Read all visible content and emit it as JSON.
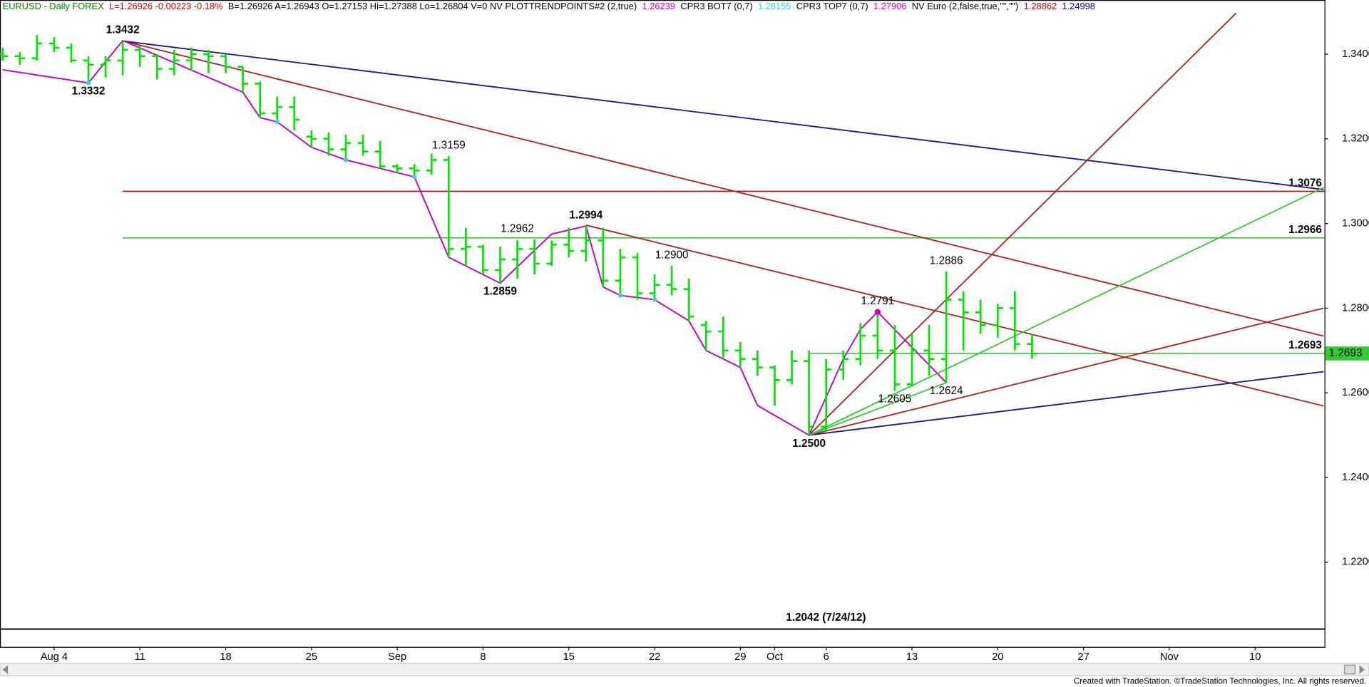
{
  "chart_data": {
    "type": "ohlc",
    "header": [
      {
        "text": "EURUSD - Daily  FOREX",
        "color": "#008000"
      },
      {
        "text": "L=1.26926  -0.00223  -0.18%",
        "color": "#cc0000"
      },
      {
        "text": "B=1.26926  A=1.26943  O=1.27153  Hi=1.27388  Lo=1.26804  V=0  NV  PLOTTRENDPOINTS#2 (2,true)",
        "color": "#000000"
      },
      {
        "text": "1.26239",
        "color": "#cc00cc"
      },
      {
        "text": "CPR3 BOT7 (0,7)",
        "color": "#000000"
      },
      {
        "text": "1.28155",
        "color": "#33ccff"
      },
      {
        "text": "CPR3 TOP7 (0,7)",
        "color": "#000000"
      },
      {
        "text": "1.27906",
        "color": "#cc00cc"
      },
      {
        "text": "NV Euro (2,false,true,\"\",\"\")",
        "color": "#000000"
      },
      {
        "text": "1.28862",
        "color": "#cc0000"
      },
      {
        "text": "1.24998",
        "color": "#000099"
      }
    ],
    "footer": "Created with TradeStation. ©TradeStation Technologies, Inc. All rights reserved.",
    "categories": [
      null,
      null,
      null,
      "Aug 4",
      null,
      null,
      null,
      null,
      "11",
      null,
      null,
      null,
      null,
      "18",
      null,
      null,
      null,
      null,
      "25",
      null,
      null,
      null,
      null,
      "Sep",
      null,
      null,
      null,
      null,
      "8",
      null,
      null,
      null,
      null,
      "15",
      null,
      null,
      null,
      null,
      "22",
      null,
      null,
      null,
      null,
      "29",
      null,
      "Oct",
      null,
      null,
      "6",
      null,
      null,
      null,
      null,
      "13",
      null,
      null,
      null,
      null,
      "20",
      null,
      null,
      null,
      null,
      "27",
      null,
      null,
      null,
      null,
      "Nov",
      null,
      null,
      null,
      null,
      "10",
      null,
      null,
      null
    ],
    "color": "#00e600",
    "open": [
      1.34,
      1.3395,
      1.339,
      1.3425,
      1.3415,
      1.3385,
      1.3375,
      1.3385,
      1.341,
      1.3395,
      1.3365,
      1.3385,
      1.34,
      1.3395,
      1.337,
      1.333,
      1.326,
      1.3275,
      1.3205,
      1.32,
      1.3175,
      1.319,
      1.317,
      1.3135,
      1.313,
      1.3125,
      1.315,
      1.294,
      1.2945,
      1.289,
      1.2915,
      1.294,
      1.2905,
      1.295,
      1.2935,
      1.296,
      1.2865,
      1.292,
      1.2835,
      1.2855,
      1.2845,
      1.276,
      1.2745,
      1.27,
      1.268,
      1.266,
      1.263,
      1.2675,
      1.252,
      1.2655,
      1.268,
      1.2735,
      1.27,
      1.262,
      1.27,
      1.268,
      1.282,
      1.279,
      1.276,
      1.28,
      1.27153,
      null,
      null,
      null,
      null,
      null,
      null,
      null,
      null,
      null,
      null,
      null,
      null,
      null,
      null,
      null,
      null
    ],
    "high": [
      1.3415,
      1.3405,
      1.3445,
      1.344,
      1.3425,
      1.3395,
      1.3395,
      1.3432,
      1.342,
      1.34,
      1.341,
      1.3415,
      1.341,
      1.34,
      1.337,
      1.3335,
      1.33,
      1.33,
      1.322,
      1.3215,
      1.321,
      1.321,
      1.3195,
      1.314,
      1.314,
      1.3165,
      1.3159,
      1.299,
      1.295,
      1.2945,
      1.296,
      1.2962,
      1.296,
      1.299,
      1.2994,
      1.299,
      1.294,
      1.293,
      1.288,
      1.29,
      1.287,
      1.277,
      1.278,
      1.272,
      1.27,
      1.2665,
      1.27,
      1.27,
      1.268,
      1.27,
      1.2765,
      1.2791,
      1.276,
      1.274,
      1.276,
      1.2886,
      1.284,
      1.282,
      1.281,
      1.284,
      1.27388,
      null,
      null,
      null,
      null,
      null,
      null,
      null,
      null,
      null,
      null,
      null,
      null,
      null,
      null,
      null,
      null
    ],
    "low": [
      1.3385,
      1.3375,
      1.3385,
      1.3405,
      1.338,
      1.3332,
      1.3345,
      1.335,
      1.337,
      1.334,
      1.335,
      1.336,
      1.3355,
      1.3355,
      1.331,
      1.325,
      1.324,
      1.322,
      1.318,
      1.316,
      1.315,
      1.316,
      1.313,
      1.312,
      1.311,
      1.3115,
      1.292,
      1.29,
      1.288,
      1.2859,
      1.287,
      1.288,
      1.29,
      1.292,
      1.291,
      1.285,
      1.283,
      1.282,
      1.2815,
      1.283,
      1.277,
      1.27,
      1.268,
      1.266,
      1.264,
      1.257,
      1.262,
      1.25,
      1.251,
      1.263,
      1.2665,
      1.268,
      1.2605,
      1.2615,
      1.264,
      1.2624,
      1.27,
      1.274,
      1.273,
      1.27,
      1.26804,
      null,
      null,
      null,
      null,
      null,
      null,
      null,
      null,
      null,
      null,
      null,
      null,
      null,
      null,
      null,
      null
    ],
    "close": [
      1.3395,
      1.339,
      1.3425,
      1.3415,
      1.3385,
      1.3375,
      1.3385,
      1.341,
      1.3395,
      1.3365,
      1.3385,
      1.34,
      1.3395,
      1.337,
      1.333,
      1.326,
      1.3275,
      1.3245,
      1.32,
      1.3175,
      1.319,
      1.317,
      1.3135,
      1.313,
      1.3125,
      1.315,
      1.294,
      1.2945,
      1.289,
      1.2915,
      1.294,
      1.2905,
      1.295,
      1.2935,
      1.296,
      1.2865,
      1.292,
      1.2835,
      1.2855,
      1.2845,
      1.278,
      1.2745,
      1.27,
      1.268,
      1.266,
      1.263,
      1.2675,
      1.252,
      1.2655,
      1.268,
      1.2735,
      1.27,
      1.262,
      1.27,
      1.268,
      1.282,
      1.279,
      1.276,
      1.28,
      1.2715,
      1.26926,
      null,
      null,
      null,
      null,
      null,
      null,
      null,
      null,
      null,
      null,
      null,
      null,
      null,
      null,
      null,
      null
    ],
    "ylim": [
      1.2,
      1.35
    ],
    "yticks": [
      {
        "value": 1.34,
        "label": "1.3400"
      },
      {
        "value": 1.32,
        "label": "1.3200"
      },
      {
        "value": 1.3,
        "label": "1.3000"
      },
      {
        "value": 1.28,
        "label": "1.2800"
      },
      {
        "value": 1.26,
        "label": "1.2600"
      },
      {
        "value": 1.24,
        "label": "1.2400"
      },
      {
        "value": 1.22,
        "label": "1.2200"
      }
    ],
    "grid": false,
    "levels": [
      {
        "value": 1.3076,
        "label": "1.3076",
        "color": "#cc0000",
        "start": 7
      },
      {
        "value": 1.2966,
        "label": "1.2966",
        "color": "#33cc33",
        "start": 7
      },
      {
        "value": 1.2693,
        "label": "1.2693",
        "color": "#33cc33",
        "start": 47,
        "tag": true
      },
      {
        "value": 1.2042,
        "label": "1.2042 (7/24/12)",
        "color": "#000000"
      }
    ],
    "trend_lines": [
      {
        "from": [
          7,
          1.3431
        ],
        "to": [
          77,
          1.308
        ],
        "color": "#1a1a8c"
      },
      {
        "from": [
          7,
          1.3431
        ],
        "to": [
          77,
          1.2734
        ],
        "color": "#b22222"
      },
      {
        "from": [
          34,
          1.2996
        ],
        "to": [
          77,
          1.2569
        ],
        "color": "#b22222"
      },
      {
        "from": [
          47,
          1.25
        ],
        "to": [
          71.9,
          1.3497
        ],
        "color": "#b22222"
      },
      {
        "from": [
          47,
          1.25
        ],
        "to": [
          77,
          1.28
        ],
        "color": "#b22222"
      },
      {
        "from": [
          47,
          1.25
        ],
        "to": [
          77,
          1.265
        ],
        "color": "#1a1a8c"
      },
      {
        "from": [
          47,
          1.25
        ],
        "to": [
          77,
          1.3085
        ],
        "color": "#33cc33"
      },
      {
        "from": [
          47,
          1.25
        ],
        "to": [
          55,
          1.2624
        ],
        "color": "#33cc33"
      }
    ],
    "swing_line": {
      "color": "#cc00cc",
      "x": [
        0,
        5,
        7,
        14,
        15,
        16,
        18,
        20,
        24,
        26,
        29,
        32,
        34,
        35,
        36,
        38,
        40,
        41,
        43,
        44,
        47,
        49,
        50,
        51,
        55
      ],
      "y": [
        1.3363,
        1.3332,
        1.3432,
        1.331,
        1.325,
        1.324,
        1.318,
        1.315,
        1.311,
        1.292,
        1.2859,
        1.2975,
        1.2994,
        1.285,
        1.283,
        1.282,
        1.277,
        1.27,
        1.266,
        1.257,
        1.25,
        1.268,
        1.275,
        1.2791,
        1.2624
      ]
    },
    "swing_points": {
      "color": "#33ccff",
      "x": [
        5,
        16,
        20,
        24,
        36,
        38
      ],
      "y": [
        1.3332,
        1.324,
        1.315,
        1.311,
        1.283,
        1.282
      ]
    },
    "peak_point": {
      "color": "#cc00cc",
      "x": 51,
      "y": 1.2791
    },
    "annotations": [
      {
        "text": "1.3432",
        "x": 7,
        "y": 1.3432,
        "position": "above",
        "bold": true
      },
      {
        "text": "1.3332",
        "x": 5,
        "y": 1.3332,
        "position": "below",
        "bold": true
      },
      {
        "text": "1.3159",
        "x": 26,
        "y": 1.3159,
        "position": "above",
        "bold": false
      },
      {
        "text": "1.2962",
        "x": 30,
        "y": 1.2962,
        "position": "above",
        "bold": false
      },
      {
        "text": "1.2859",
        "x": 29,
        "y": 1.2859,
        "position": "below",
        "bold": true
      },
      {
        "text": "1.2994",
        "x": 34,
        "y": 1.2994,
        "position": "above",
        "bold": true
      },
      {
        "text": "1.2900",
        "x": 39,
        "y": 1.29,
        "position": "above",
        "bold": false
      },
      {
        "text": "1.2500",
        "x": 47,
        "y": 1.25,
        "position": "below",
        "bold": true
      },
      {
        "text": "1.2791",
        "x": 51,
        "y": 1.2791,
        "position": "above",
        "bold": false
      },
      {
        "text": "1.2605",
        "x": 52,
        "y": 1.2605,
        "position": "below",
        "bold": false
      },
      {
        "text": "1.2624",
        "x": 55,
        "y": 1.2624,
        "position": "below",
        "bold": false
      },
      {
        "text": "1.2886",
        "x": 55,
        "y": 1.2886,
        "position": "above",
        "bold": false
      }
    ]
  }
}
